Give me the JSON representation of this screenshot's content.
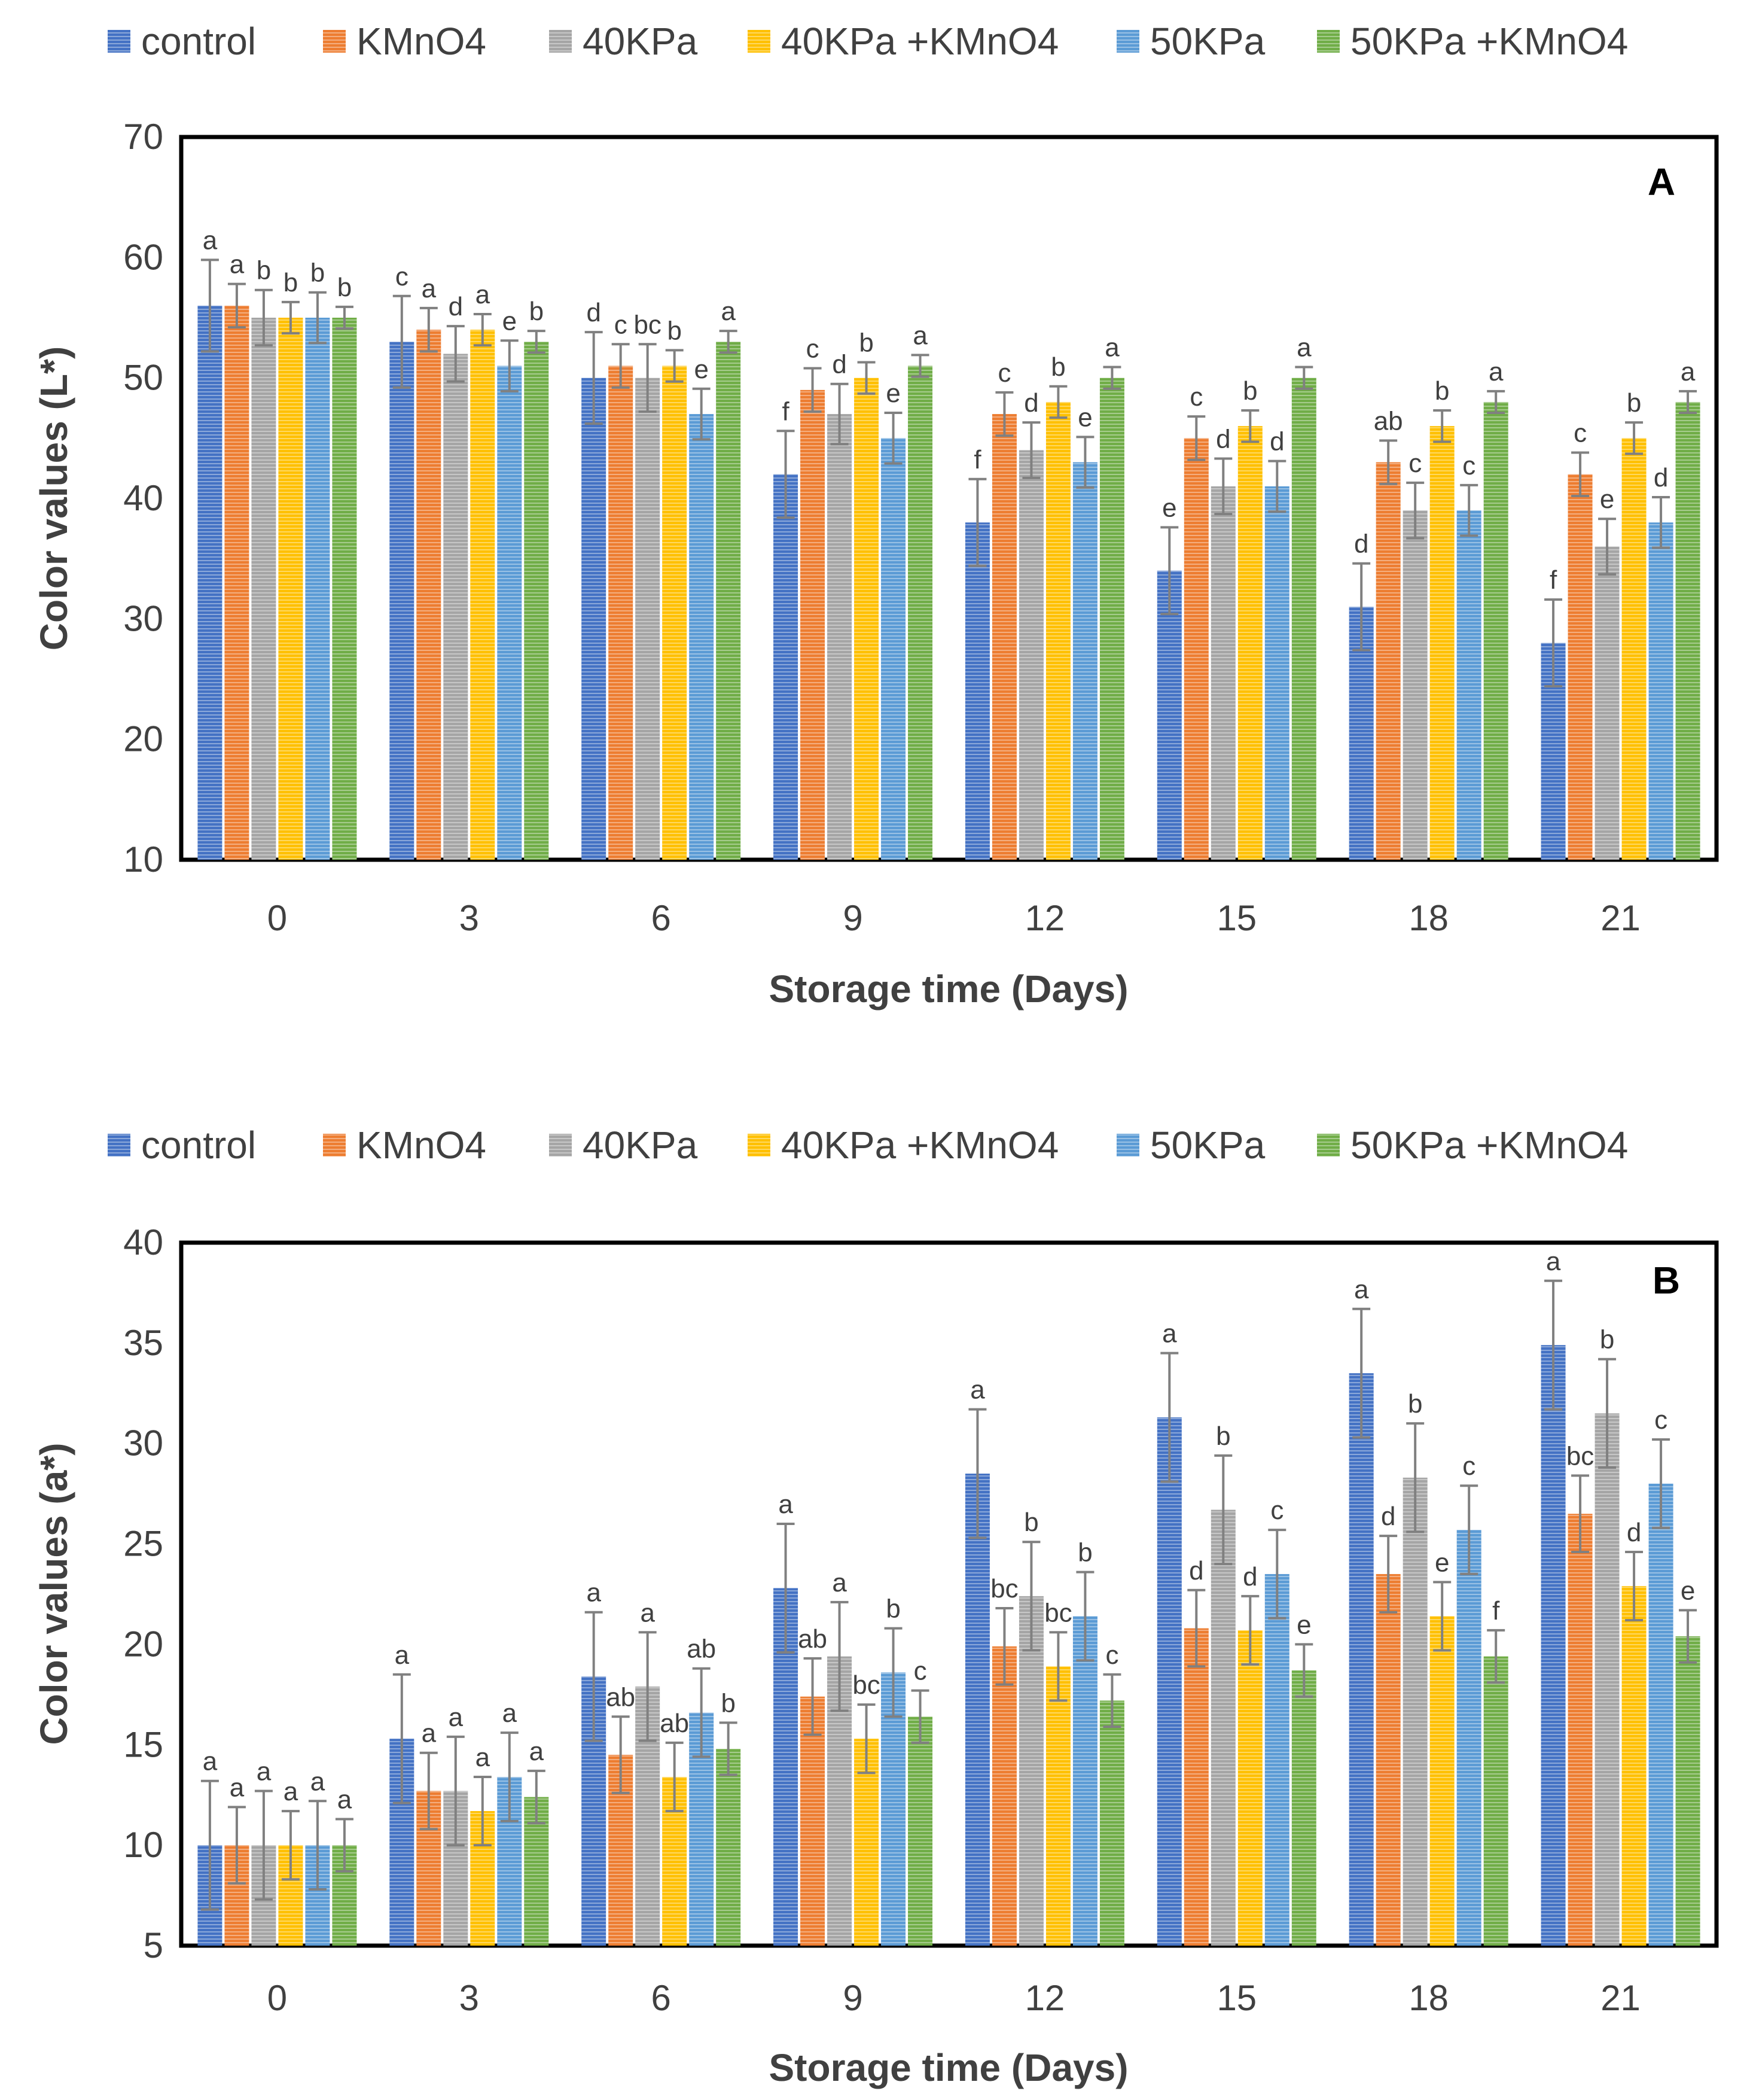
{
  "legend": [
    "control",
    "KMnO4",
    "40KPa",
    "40KPa +KMnO4",
    "50KPa",
    "50KPa +KMnO4"
  ],
  "colors": [
    "#4472c4",
    "#ed7d31",
    "#a5a5a5",
    "#ffc000",
    "#5b9bd5",
    "#70ad47"
  ],
  "chart_data": [
    {
      "type": "bar",
      "panel_label": "A",
      "xlabel": "Storage time (Days)",
      "ylabel": "Color values (L*)",
      "ylim": [
        10,
        70
      ],
      "yticks": [
        10,
        20,
        30,
        40,
        50,
        60,
        70
      ],
      "categories": [
        "0",
        "3",
        "6",
        "9",
        "12",
        "15",
        "18",
        "21"
      ],
      "series": [
        {
          "name": "control",
          "values": [
            56,
            53,
            50,
            42,
            38,
            34,
            31,
            28
          ],
          "errors": [
            3.8,
            3.8,
            3.8,
            3.6,
            3.6,
            3.6,
            3.6,
            3.6
          ],
          "letters": [
            "a",
            "c",
            "d",
            "f",
            "f",
            "e",
            "d",
            "f"
          ]
        },
        {
          "name": "KMnO4",
          "values": [
            56,
            54,
            51,
            49,
            47,
            45,
            43,
            42
          ],
          "errors": [
            1.8,
            1.8,
            1.8,
            1.8,
            1.8,
            1.8,
            1.8,
            1.8
          ],
          "letters": [
            "a",
            "a",
            "c",
            "c",
            "c",
            "c",
            "ab",
            "c"
          ]
        },
        {
          "name": "40KPa",
          "values": [
            55,
            52,
            50,
            47,
            44,
            41,
            39,
            36
          ],
          "errors": [
            2.3,
            2.3,
            2.8,
            2.5,
            2.3,
            2.3,
            2.3,
            2.3
          ],
          "letters": [
            "b",
            "d",
            "bc",
            "d",
            "d",
            "d",
            "c",
            "e"
          ]
        },
        {
          "name": "40KPa +KMnO4",
          "values": [
            55,
            54,
            51,
            50,
            48,
            46,
            46,
            45
          ],
          "errors": [
            1.3,
            1.3,
            1.3,
            1.3,
            1.3,
            1.3,
            1.3,
            1.3
          ],
          "letters": [
            "b",
            "a",
            "b",
            "b",
            "b",
            "b",
            "b",
            "b"
          ]
        },
        {
          "name": "50KPa",
          "values": [
            55,
            51,
            47,
            45,
            43,
            41,
            39,
            38
          ],
          "errors": [
            2.1,
            2.1,
            2.1,
            2.1,
            2.1,
            2.1,
            2.1,
            2.1
          ],
          "letters": [
            "b",
            "e",
            "e",
            "e",
            "e",
            "d",
            "c",
            "d"
          ]
        },
        {
          "name": "50KPa +KMnO4",
          "values": [
            55,
            53,
            53,
            51,
            50,
            50,
            48,
            48
          ],
          "errors": [
            0.9,
            0.9,
            0.9,
            0.9,
            0.9,
            0.9,
            0.9,
            0.9
          ],
          "letters": [
            "b",
            "b",
            "a",
            "a",
            "a",
            "a",
            "a",
            "a"
          ]
        }
      ]
    },
    {
      "type": "bar",
      "panel_label": "B",
      "xlabel": "Storage time (Days)",
      "ylabel": "Color values (a*)",
      "ylim": [
        5,
        40
      ],
      "yticks": [
        5,
        10,
        15,
        20,
        25,
        30,
        35,
        40
      ],
      "categories": [
        "0",
        "3",
        "6",
        "9",
        "12",
        "15",
        "18",
        "21"
      ],
      "series": [
        {
          "name": "control",
          "values": [
            10,
            15.3,
            18.4,
            22.8,
            28.5,
            31.3,
            33.5,
            34.9
          ],
          "errors": [
            3.2,
            3.2,
            3.2,
            3.2,
            3.2,
            3.2,
            3.2,
            3.2
          ],
          "letters": [
            "a",
            "a",
            "a",
            "a",
            "a",
            "a",
            "a",
            "a"
          ]
        },
        {
          "name": "KMnO4",
          "values": [
            10,
            12.7,
            14.5,
            17.4,
            19.9,
            20.8,
            23.5,
            26.5
          ],
          "errors": [
            1.9,
            1.9,
            1.9,
            1.9,
            1.9,
            1.9,
            1.9,
            1.9
          ],
          "letters": [
            "a",
            "a",
            "ab",
            "ab",
            "bc",
            "d",
            "d",
            "bc"
          ]
        },
        {
          "name": "40KPa",
          "values": [
            10,
            12.7,
            17.9,
            19.4,
            22.4,
            26.7,
            28.3,
            31.5
          ],
          "errors": [
            2.7,
            2.7,
            2.7,
            2.7,
            2.7,
            2.7,
            2.7,
            2.7
          ],
          "letters": [
            "a",
            "a",
            "a",
            "a",
            "b",
            "b",
            "b",
            "b"
          ]
        },
        {
          "name": "40KPa +KMnO4",
          "values": [
            10,
            11.7,
            13.4,
            15.3,
            18.9,
            20.7,
            21.4,
            22.9
          ],
          "errors": [
            1.7,
            1.7,
            1.7,
            1.7,
            1.7,
            1.7,
            1.7,
            1.7
          ],
          "letters": [
            "a",
            "a",
            "ab",
            "bc",
            "bc",
            "d",
            "e",
            "d"
          ]
        },
        {
          "name": "50KPa",
          "values": [
            10,
            13.4,
            16.6,
            18.6,
            21.4,
            23.5,
            25.7,
            28
          ],
          "errors": [
            2.2,
            2.2,
            2.2,
            2.2,
            2.2,
            2.2,
            2.2,
            2.2
          ],
          "letters": [
            "a",
            "a",
            "ab",
            "b",
            "b",
            "c",
            "c",
            "c"
          ]
        },
        {
          "name": "50KPa +KMnO4",
          "values": [
            10,
            12.4,
            14.8,
            16.4,
            17.2,
            18.7,
            19.4,
            20.4
          ],
          "errors": [
            1.3,
            1.3,
            1.3,
            1.3,
            1.3,
            1.3,
            1.3,
            1.3
          ],
          "letters": [
            "a",
            "a",
            "b",
            "c",
            "c",
            "e",
            "f",
            "e"
          ]
        }
      ]
    }
  ]
}
